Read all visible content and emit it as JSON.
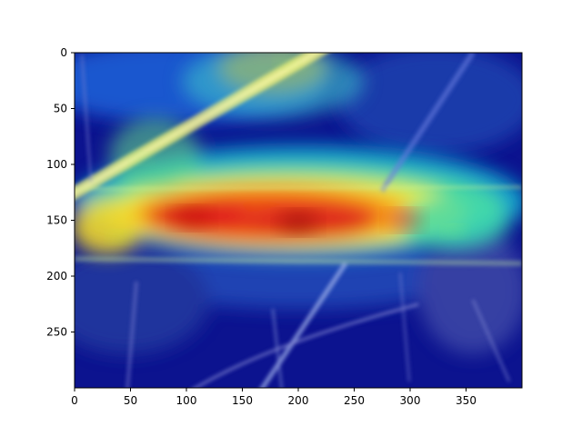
{
  "chart_data": {
    "type": "heatmap",
    "title": "",
    "xlabel": "",
    "ylabel": "",
    "image_size": [
      400,
      300
    ],
    "xlim": [
      0,
      400
    ],
    "ylim": [
      300,
      0
    ],
    "y_inverted": true,
    "grid": false,
    "colormap": "jet",
    "x_ticks": [
      0,
      50,
      100,
      150,
      200,
      250,
      300,
      350
    ],
    "y_ticks": [
      0,
      50,
      100,
      150,
      200,
      250
    ],
    "x_tick_labels": [
      "0",
      "50",
      "100",
      "150",
      "200",
      "250",
      "300",
      "350"
    ],
    "y_tick_labels": [
      "0",
      "50",
      "100",
      "150",
      "200",
      "250"
    ],
    "hotspots": [
      {
        "x": 200,
        "y": 152,
        "intensity": 1.0
      },
      {
        "x": 105,
        "y": 148,
        "intensity": 0.95
      },
      {
        "x": 295,
        "y": 150,
        "intensity": 0.9
      },
      {
        "x": 340,
        "y": 160,
        "intensity": 0.55
      },
      {
        "x": 40,
        "y": 165,
        "intensity": 0.55
      },
      {
        "x": 190,
        "y": 8,
        "intensity": 0.55
      },
      {
        "x": 60,
        "y": 95,
        "intensity": 0.5
      }
    ]
  }
}
